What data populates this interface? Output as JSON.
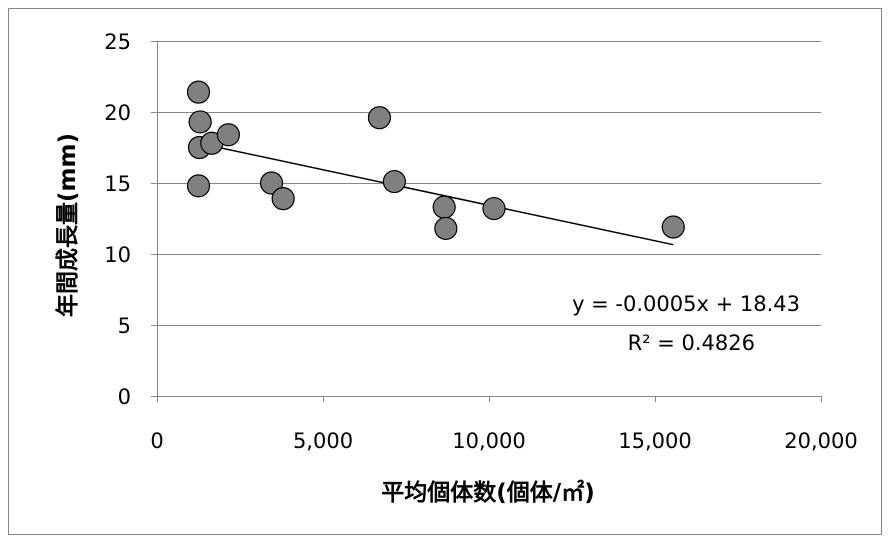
{
  "chart_data": {
    "type": "scatter",
    "xlabel": "平均個体数(個体/㎡)",
    "ylabel": "年間成長量(mm)",
    "xlim": [
      0,
      20000
    ],
    "ylim": [
      0,
      25
    ],
    "x_ticks": [
      0,
      5000,
      10000,
      15000,
      20000
    ],
    "x_tick_labels": [
      "0",
      "5,000",
      "10,000",
      "15,000",
      "20,000"
    ],
    "y_ticks": [
      0,
      5,
      10,
      15,
      20,
      25
    ],
    "y_tick_labels": [
      "0",
      "5",
      "10",
      "15",
      "20",
      "25"
    ],
    "grid": "horizontal",
    "legend": "none",
    "points": [
      {
        "x": 1250,
        "y": 21.4
      },
      {
        "x": 1300,
        "y": 19.3
      },
      {
        "x": 1280,
        "y": 17.5
      },
      {
        "x": 1650,
        "y": 17.8
      },
      {
        "x": 2150,
        "y": 18.4
      },
      {
        "x": 1250,
        "y": 14.8
      },
      {
        "x": 3450,
        "y": 15.0
      },
      {
        "x": 3800,
        "y": 13.9
      },
      {
        "x": 6700,
        "y": 19.6
      },
      {
        "x": 7150,
        "y": 15.1
      },
      {
        "x": 8650,
        "y": 13.3
      },
      {
        "x": 8700,
        "y": 11.8
      },
      {
        "x": 10150,
        "y": 13.2
      },
      {
        "x": 15550,
        "y": 11.9
      }
    ],
    "trendline": {
      "type": "linear",
      "slope": -0.0005,
      "intercept": 18.43,
      "x_range": [
        1250,
        15550
      ],
      "equation_label": "y = -0.0005x + 18.43",
      "r2_label": "R² = 0.4826"
    },
    "marker_color": "#808080",
    "marker_edge_color": "#000000",
    "grid_color": "#878787",
    "frame_color": "#878787"
  }
}
